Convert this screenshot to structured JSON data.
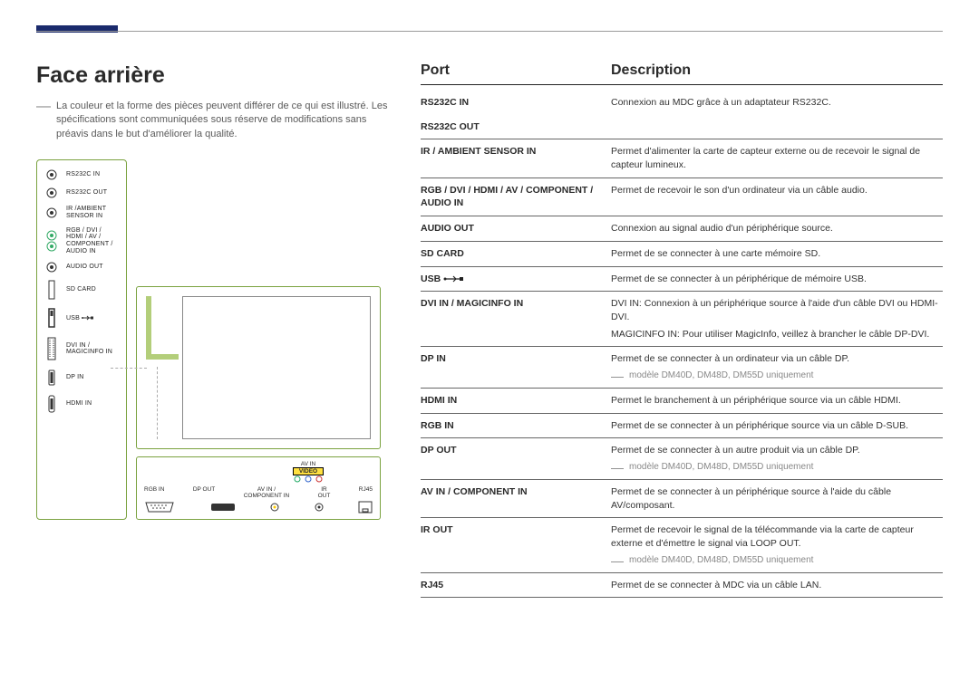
{
  "title": "Face arrière",
  "intro_note": "La couleur et la forme des pièces peuvent différer de ce qui est illustré. Les spécifications sont communiquées sous réserve de modifications sans préavis dans le but d'améliorer la qualité.",
  "headers": {
    "port": "Port",
    "description": "Description"
  },
  "vpanel": [
    "RS232C IN",
    "RS232C OUT",
    "IR /AMBIENT\nSENSOR IN",
    "RGB / DVI /\nHDMI / AV /\nCOMPONENT /\nAUDIO IN",
    "AUDIO OUT",
    "SD CARD",
    "USB",
    "DVI IN /\nMAGICINFO IN",
    "DP IN",
    "HDMI IN"
  ],
  "hpanel_top": {
    "av_in": "AV IN",
    "video": "VIDEO"
  },
  "hpanel": [
    "RGB IN",
    "DP OUT",
    "AV IN /\nCOMPONENT IN",
    "IR\nOUT",
    "RJ45"
  ],
  "model_note": "modèle DM40D, DM48D, DM55D uniquement",
  "rows": [
    {
      "port": "RS232C IN",
      "desc": "Connexion au MDC grâce à un adaptateur RS232C."
    },
    {
      "port": "RS232C OUT",
      "desc": ""
    },
    {
      "port": "IR / AMBIENT SENSOR IN",
      "desc": "Permet d'alimenter la carte de capteur externe ou de recevoir le signal de capteur lumineux."
    },
    {
      "port": "RGB / DVI / HDMI / AV / COMPONENT / AUDIO IN",
      "desc": "Permet de recevoir le son d'un ordinateur via un câble audio."
    },
    {
      "port": "AUDIO OUT",
      "desc": "Connexion au signal audio d'un périphérique source."
    },
    {
      "port": "SD CARD",
      "desc": "Permet de se connecter à une carte mémoire SD."
    },
    {
      "port": "USB",
      "usb": true,
      "desc": "Permet de se connecter à un périphérique de mémoire USB."
    },
    {
      "port": "DVI IN / MAGICINFO IN",
      "desc": "DVI IN: Connexion à un périphérique source à l'aide d'un câble DVI ou HDMI-DVI.",
      "desc2": "MAGICINFO IN: Pour utiliser MagicInfo, veillez à brancher le câble DP-DVI."
    },
    {
      "port": "DP IN",
      "desc": "Permet de se connecter à un ordinateur via un câble DP.",
      "note": true
    },
    {
      "port": "HDMI IN",
      "desc": "Permet le branchement à un périphérique source via un câble HDMI."
    },
    {
      "port": "RGB IN",
      "desc": "Permet de se connecter à un périphérique source via un câble D-SUB."
    },
    {
      "port": "DP OUT",
      "desc": "Permet de se connecter à un autre produit via un câble DP.",
      "note": true
    },
    {
      "port": "AV IN / COMPONENT IN",
      "desc": "Permet de se connecter à un périphérique source à l'aide du câble AV/composant."
    },
    {
      "port": "IR OUT",
      "desc": "Permet de recevoir le signal de la télécommande via la carte de capteur externe et d'émettre le signal via LOOP OUT.",
      "note": true
    },
    {
      "port": "RJ45",
      "desc": "Permet de se connecter à MDC via un câble LAN."
    }
  ],
  "colors": {
    "accent": "#1a2a6c",
    "panel_border": "#7aa23f",
    "cable": "#b3ce7a",
    "grey": "#888888"
  }
}
